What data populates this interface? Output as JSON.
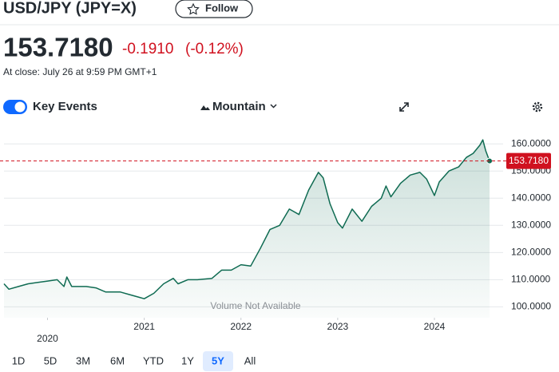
{
  "header": {
    "title": "USD/JPY (JPY=X)",
    "follow": "Follow",
    "price": "153.7180",
    "change": "-0.1910",
    "change_percent": "(-0.12%)",
    "close_note": "At close: July 26 at 9:59 PM GMT+1"
  },
  "toolbar": {
    "key_events": "Key Events",
    "chart_style": "Mountain"
  },
  "ranges": [
    "1D",
    "5D",
    "3M",
    "6M",
    "YTD",
    "1Y",
    "5Y",
    "All"
  ],
  "selected_range": "5Y",
  "chart_data": {
    "type": "area",
    "color": "#0f6b52",
    "grid": true,
    "annotation": "Volume Not Available",
    "reference_line": {
      "value": 153.718,
      "label": "153.7180",
      "color": "#d0111f"
    },
    "x": [
      2019.55,
      2019.6,
      2019.7,
      2019.8,
      2019.9,
      2020.0,
      2020.1,
      2020.17,
      2020.2,
      2020.25,
      2020.4,
      2020.5,
      2020.6,
      2020.75,
      2020.85,
      2020.95,
      2021.0,
      2021.1,
      2021.2,
      2021.3,
      2021.35,
      2021.45,
      2021.55,
      2021.7,
      2021.8,
      2021.9,
      2022.0,
      2022.1,
      2022.2,
      2022.3,
      2022.4,
      2022.5,
      2022.6,
      2022.7,
      2022.8,
      2022.85,
      2022.92,
      2023.0,
      2023.05,
      2023.15,
      2023.25,
      2023.35,
      2023.45,
      2023.5,
      2023.55,
      2023.65,
      2023.75,
      2023.85,
      2023.92,
      2024.0,
      2024.05,
      2024.15,
      2024.25,
      2024.33,
      2024.4,
      2024.47,
      2024.5,
      2024.53,
      2024.57
    ],
    "values": [
      108.5,
      106.5,
      107.5,
      108.5,
      109.0,
      109.5,
      110.0,
      107.5,
      111.0,
      107.5,
      107.5,
      107.0,
      105.5,
      105.5,
      104.5,
      103.5,
      103.0,
      105.0,
      108.5,
      110.5,
      108.5,
      110.0,
      110.0,
      110.5,
      113.5,
      113.5,
      115.5,
      115.0,
      121.5,
      128.5,
      130.0,
      136.0,
      134.0,
      143.0,
      149.5,
      147.5,
      138.0,
      131.0,
      129.0,
      136.0,
      131.5,
      137.0,
      140.0,
      144.5,
      140.5,
      145.5,
      148.5,
      149.5,
      147.0,
      141.0,
      146.0,
      150.0,
      151.5,
      155.0,
      156.5,
      159.5,
      161.5,
      157.5,
      153.718
    ],
    "xlim": [
      2019.55,
      2024.71
    ],
    "xticks": [
      2020,
      2021,
      2022,
      2023,
      2024
    ],
    "ylim": [
      96,
      163
    ],
    "yticks": [
      {
        "value": 100,
        "label": "100.0000"
      },
      {
        "value": 110,
        "label": "110.0000"
      },
      {
        "value": 120,
        "label": "120.0000"
      },
      {
        "value": 130,
        "label": "130.0000"
      },
      {
        "value": 140,
        "label": "140.0000"
      },
      {
        "value": 150,
        "label": "150.0000"
      },
      {
        "value": 160,
        "label": "160.0000"
      }
    ]
  }
}
